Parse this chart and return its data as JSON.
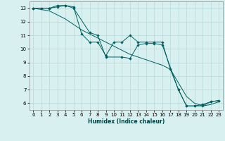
{
  "xlabel": "Humidex (Indice chaleur)",
  "bg_color": "#d8f0f0",
  "grid_color": "#b8d8d8",
  "line_color": "#006060",
  "xlim": [
    -0.5,
    23.5
  ],
  "ylim": [
    5.5,
    13.5
  ],
  "xticks": [
    0,
    1,
    2,
    3,
    4,
    5,
    6,
    7,
    8,
    9,
    10,
    11,
    12,
    13,
    14,
    15,
    16,
    17,
    18,
    19,
    20,
    21,
    22,
    23
  ],
  "yticks": [
    6,
    7,
    8,
    9,
    10,
    11,
    12,
    13
  ],
  "series": [
    {
      "x": [
        0,
        1,
        2,
        3,
        4,
        5,
        6,
        7,
        8,
        9,
        10,
        11,
        12,
        13,
        14,
        15,
        16,
        17,
        18,
        19,
        20,
        21,
        22,
        23
      ],
      "y": [
        13,
        13,
        13,
        13.1,
        13.2,
        13.1,
        11.1,
        10.5,
        10.5,
        9.5,
        10.5,
        10.5,
        11.0,
        10.5,
        10.5,
        10.5,
        10.5,
        8.5,
        7.0,
        5.8,
        5.8,
        5.8,
        6.1,
        6.2
      ],
      "has_markers": true
    },
    {
      "x": [
        0,
        1,
        2,
        3,
        4,
        5,
        6,
        7,
        8,
        9,
        10,
        11,
        12,
        13,
        14,
        15,
        16,
        17,
        18,
        19,
        20,
        21,
        22,
        23
      ],
      "y": [
        13,
        12.9,
        12.8,
        12.5,
        12.2,
        11.8,
        11.4,
        11.1,
        10.8,
        10.5,
        10.2,
        9.9,
        9.6,
        9.4,
        9.2,
        9.0,
        8.8,
        8.5,
        7.5,
        6.5,
        6.0,
        5.8,
        5.9,
        6.1
      ],
      "has_markers": false
    },
    {
      "x": [
        0,
        2,
        3,
        4,
        5,
        7,
        8,
        9,
        11,
        12,
        13,
        14,
        15,
        16,
        18,
        19,
        20,
        21,
        22,
        23
      ],
      "y": [
        13,
        13,
        13.2,
        13.2,
        13.0,
        11.2,
        11.0,
        9.4,
        9.4,
        9.3,
        10.3,
        10.4,
        10.4,
        10.3,
        7.0,
        5.8,
        5.8,
        5.9,
        6.1,
        6.2
      ],
      "has_markers": true
    }
  ]
}
